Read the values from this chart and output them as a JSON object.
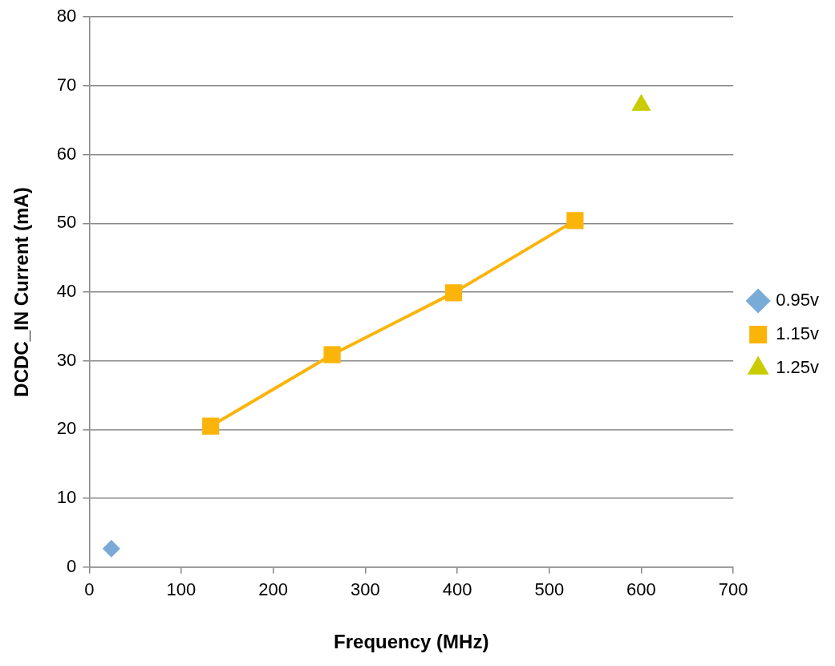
{
  "chart_data": {
    "type": "line",
    "xlabel": "Frequency (MHz)",
    "ylabel": "DCDC_IN Current (mA)",
    "xlim": [
      0,
      700
    ],
    "xticks": [
      0,
      100,
      200,
      300,
      400,
      500,
      600,
      700
    ],
    "ylim": [
      0,
      80
    ],
    "yticks": [
      0,
      10,
      20,
      30,
      40,
      50,
      60,
      70,
      80
    ],
    "grid": "y",
    "legend": "right",
    "line_style": "solid",
    "series": [
      {
        "name": "0.95v",
        "color": "#7aabd8",
        "marker": "diamond",
        "x": [
          24
        ],
        "values": [
          2.7
        ]
      },
      {
        "name": "1.15v",
        "color": "#fbb40a",
        "marker": "square",
        "x": [
          132,
          264,
          396,
          528
        ],
        "values": [
          20.5,
          30.9,
          39.9,
          50.4
        ]
      },
      {
        "name": "1.25v",
        "color": "#c8cc00",
        "marker": "triangle",
        "x": [
          600
        ],
        "values": [
          67.2
        ]
      }
    ]
  }
}
